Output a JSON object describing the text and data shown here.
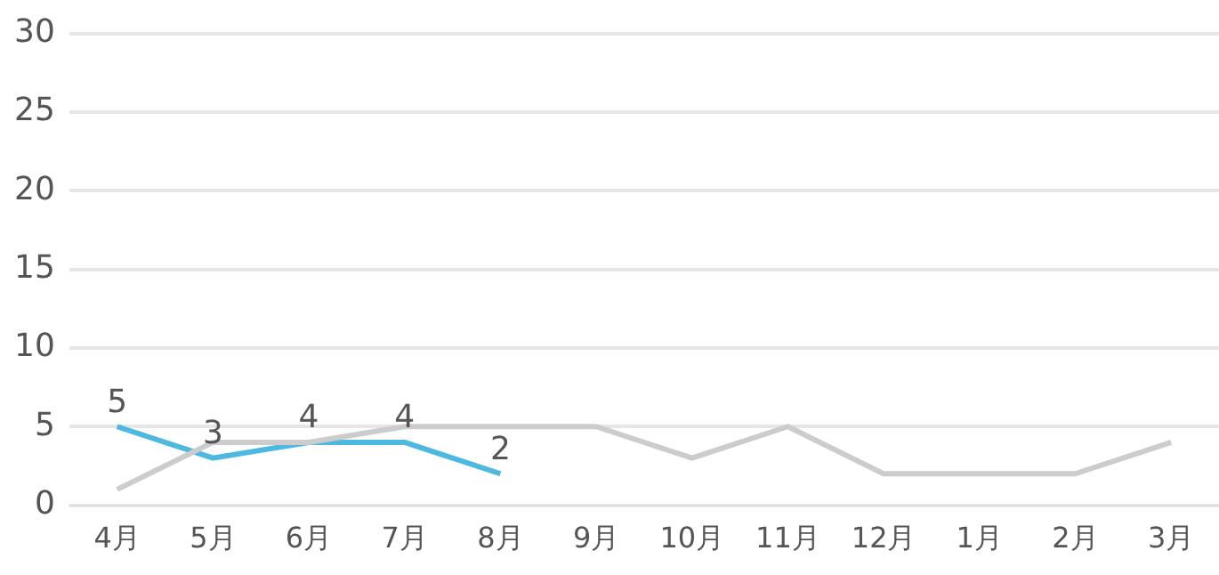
{
  "chart_data": {
    "type": "line",
    "categories": [
      "4月",
      "5月",
      "6月",
      "7月",
      "8月",
      "9月",
      "10月",
      "11月",
      "12月",
      "1月",
      "2月",
      "3月"
    ],
    "series": [
      {
        "color": "#cccccc",
        "values": [
          1,
          4,
          4,
          5,
          5,
          5,
          3,
          5,
          2,
          2,
          2,
          4
        ]
      },
      {
        "color": "#4db8e0",
        "values": [
          5,
          3,
          4,
          4,
          2,
          null,
          null,
          null,
          null,
          null,
          null,
          null
        ],
        "value_labels": [
          "5",
          "3",
          "4",
          "4",
          "2",
          null,
          null,
          null,
          null,
          null,
          null,
          null
        ]
      }
    ],
    "ylim": [
      0,
      30
    ],
    "yticks": [
      0,
      5,
      10,
      15,
      20,
      25,
      30
    ],
    "grid": "y",
    "marker": "none",
    "line_style": "solid",
    "legend": false
  }
}
